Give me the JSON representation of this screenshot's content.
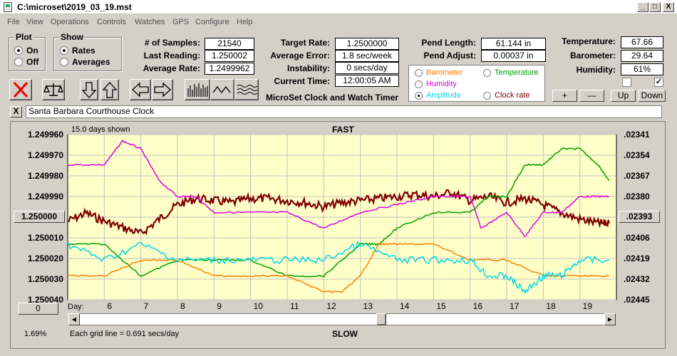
{
  "window": {
    "title": "C:\\microset\\2019_03_19.mst",
    "minimize": "_",
    "maximize": "□",
    "close": "X"
  },
  "menu": [
    "File",
    "View",
    "Operations",
    "Controls",
    "Watches",
    "GPS",
    "Configure",
    "Help"
  ],
  "plot_group": {
    "title": "Plot",
    "options": [
      "On",
      "Off"
    ],
    "selected": "On"
  },
  "show_group": {
    "title": "Show",
    "options": [
      "Rates",
      "Averages"
    ],
    "selected": "Rates"
  },
  "stats": {
    "samples_label": "# of Samples:",
    "samples": "21540",
    "last_reading_label": "Last Reading:",
    "last_reading": "1.250002",
    "average_rate_label": "Average Rate:",
    "average_rate": "1.2499962",
    "target_rate_label": "Target Rate:",
    "target_rate": "1.2500000",
    "average_error_label": "Average Error:",
    "average_error": "1.8 sec/week",
    "instability_label": "Instability:",
    "instability": "0 secs/day",
    "current_time_label": "Current Time:",
    "current_time": "12:00:05 AM",
    "pend_length_label": "Pend Length:",
    "pend_length": "61.144 in",
    "pend_adjust_label": "Pend Adjust:",
    "pend_adjust": "0.00037 in",
    "temperature_label": "Temperature:",
    "temperature": "67.66",
    "barometer_label": "Barometer:",
    "barometer": "29.64",
    "humidity_label": "Humidity:",
    "humidity": "61%"
  },
  "app_title": "MicroSet Clock and Watch Timer",
  "overlay": {
    "options": [
      {
        "label": "Barometer",
        "color": "#ff8000",
        "selected": false
      },
      {
        "label": "Temperature",
        "color": "#00a000",
        "selected": false
      },
      {
        "label": "Humidity",
        "color": "#e000e0",
        "selected": false
      },
      {
        "label": "Amplitude",
        "color": "#00d8e8",
        "selected": true
      },
      {
        "label": "Clock rate",
        "color": "#800000",
        "selected": false
      }
    ]
  },
  "adjust_buttons": [
    "+",
    "—",
    "Up",
    "Down"
  ],
  "checkboxes": [
    {
      "checked": false
    },
    {
      "checked": true
    }
  ],
  "clock_close": "X",
  "clock_name": "Santa Barbara Courthouse Clock",
  "chart": {
    "days_shown": "15.0 days shown",
    "top_label": "FAST",
    "bottom_label": "SLOW",
    "grid_note": "Each grid line = 0.691 secs/day",
    "percent": "1.69%",
    "center_button": "1.250000",
    "right_center_button": ".02393",
    "zero_button": "0",
    "day_label": "Day:"
  },
  "chart_data": {
    "type": "line",
    "title": "",
    "xlabel": "Day:",
    "x_ticks": [
      "6",
      "7",
      "8",
      "9",
      "10",
      "11",
      "12",
      "13",
      "14",
      "15",
      "16",
      "17",
      "18",
      "19"
    ],
    "xlim": [
      5,
      20
    ],
    "left_axis": {
      "ticks": [
        "1.249960",
        "1.249970",
        "1.249980",
        "1.249990",
        "1.250000",
        "1.250010",
        "1.250020",
        "1.250030",
        "1.250040"
      ],
      "ylim": [
        1.24996,
        1.25004
      ],
      "inverted": true
    },
    "right_axis": {
      "ticks": [
        ".02341",
        ".02354",
        ".02367",
        ".02380",
        ".02393",
        ".02406",
        ".02419",
        ".02432",
        ".02445"
      ],
      "ylim": [
        0.02341,
        0.02445
      ],
      "inverted": true
    },
    "grid": true,
    "series": [
      {
        "name": "Clock rate",
        "color": "#800000",
        "axis": "left",
        "x": [
          5,
          5.5,
          6,
          6.5,
          7,
          7.5,
          8,
          8.5,
          9,
          9.5,
          10,
          10.5,
          11,
          11.5,
          12,
          12.5,
          13,
          13.5,
          14,
          14.5,
          15,
          15.5,
          16,
          16.5,
          17,
          17.5,
          18,
          18.5,
          19,
          19.5,
          19.8
        ],
        "y": [
          1.250002,
          1.249998,
          1.250002,
          1.250005,
          1.250008,
          1.250001,
          1.249994,
          1.249991,
          1.249992,
          1.249993,
          1.249991,
          1.249991,
          1.249992,
          1.249993,
          1.249995,
          1.249993,
          1.249992,
          1.249991,
          1.24999,
          1.249989,
          1.24999,
          1.249988,
          1.249992,
          1.24999,
          1.249993,
          1.249991,
          1.249994,
          1.249998,
          1.250001,
          1.250003,
          1.250003
        ]
      },
      {
        "name": "Humidity",
        "color": "#e000e0",
        "axis": "right",
        "x": [
          5,
          6,
          6.5,
          7,
          7.5,
          8,
          8.5,
          9,
          10,
          11,
          12,
          13,
          14,
          15,
          16,
          16.3,
          17,
          17.5,
          18,
          18.5,
          19,
          19.5,
          19.8
        ],
        "y": [
          0.0236,
          0.0236,
          0.02345,
          0.0235,
          0.0237,
          0.0238,
          0.0238,
          0.0239,
          0.0239,
          0.0239,
          0.024,
          0.0239,
          0.02385,
          0.0238,
          0.0238,
          0.024,
          0.0239,
          0.02405,
          0.0239,
          0.0239,
          0.0238,
          0.0238,
          0.0238
        ]
      },
      {
        "name": "Temperature",
        "color": "#00a000",
        "axis": "right",
        "x": [
          5,
          6,
          7,
          8,
          9,
          10,
          11,
          12,
          13,
          13.5,
          14,
          15,
          16,
          16.5,
          17,
          17.5,
          18,
          18.5,
          19,
          19.5,
          19.8
        ],
        "y": [
          0.0241,
          0.0241,
          0.0243,
          0.0242,
          0.0242,
          0.0242,
          0.0243,
          0.0243,
          0.0241,
          0.0241,
          0.024,
          0.0239,
          0.0239,
          0.0238,
          0.0238,
          0.0236,
          0.0236,
          0.0235,
          0.0235,
          0.0236,
          0.0237
        ]
      },
      {
        "name": "Barometer",
        "color": "#ff8000",
        "axis": "right",
        "x": [
          5,
          6,
          7,
          8,
          9,
          10,
          11,
          12,
          12.5,
          13,
          13.5,
          14,
          15,
          16,
          17,
          18,
          19,
          19.8
        ],
        "y": [
          0.0243,
          0.0243,
          0.0242,
          0.0242,
          0.0243,
          0.0243,
          0.0243,
          0.0244,
          0.0244,
          0.0243,
          0.0241,
          0.0241,
          0.0241,
          0.0242,
          0.0242,
          0.0243,
          0.0243,
          0.0243
        ]
      },
      {
        "name": "Amplitude",
        "color": "#00d8e8",
        "axis": "right",
        "x": [
          5,
          6,
          7,
          8,
          9,
          10,
          11,
          12,
          13,
          14,
          15,
          16,
          16.5,
          17,
          17.5,
          18,
          18.5,
          19,
          19.8
        ],
        "y": [
          0.0241,
          0.0242,
          0.0241,
          0.0242,
          0.0242,
          0.0242,
          0.0242,
          0.0242,
          0.0241,
          0.0242,
          0.0242,
          0.0242,
          0.0243,
          0.0243,
          0.0244,
          0.0243,
          0.0243,
          0.0242,
          0.0242
        ]
      }
    ]
  }
}
